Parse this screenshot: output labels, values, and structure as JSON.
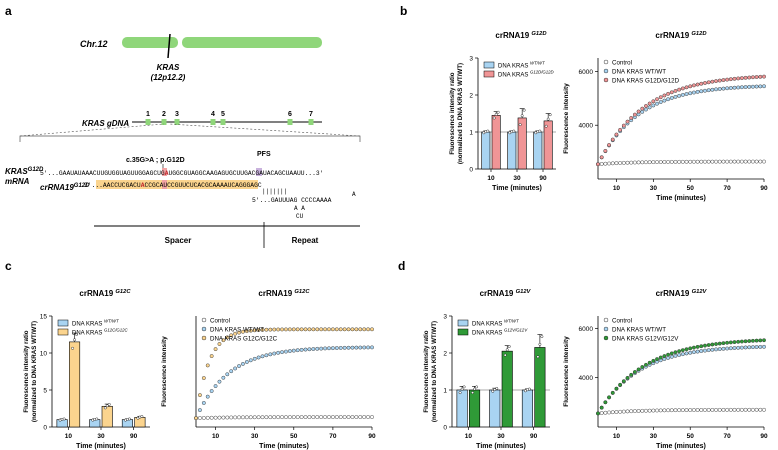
{
  "panels": {
    "a": {
      "label": "a",
      "chromosome": "Chr.12",
      "gene": "KRAS",
      "locus": "(12p12.2)",
      "gdna_label": "KRAS gDNA",
      "exons": [
        "1",
        "2",
        "3",
        "4",
        "5",
        "6",
        "7"
      ],
      "mrna_label_main": "KRAS",
      "mrna_label_sup": "G12D",
      "mrna_label_line2": "mRNA",
      "mutation": "c.35G>A ; p.G12D",
      "pfs": "PFS",
      "mrna_seq_prefix": "5'...GAAUAUAAACUUGUGGUAGUUGGAGCUG",
      "mrna_seq_mut": "A",
      "mrna_seq_mid": "UGGCGUAGGCAAGAGUG",
      "mrna_seq_pfs": "C",
      "mrna_seq_suffix": "UUGACGAUACAGCUAAUU...3'",
      "crrna_label_main": "crRNA19",
      "crrna_label_sup": "G12D",
      "crrna_seq_prefix": "3'...",
      "crrna_seq_a": "AACCUCGACU",
      "crrna_seq_mut": "A",
      "crrna_seq_b": "CCGCAUCCGUUCUCACG",
      "crrna_seq_tail": "CAAAAUCAGGGAGC",
      "crrna_line2": "5'...GAUUUAG  CCCCAAAA",
      "crrna_pairs": "|||||||",
      "loop_a": "A",
      "loop_aa": "A A",
      "loop_cu": "CU",
      "spacer": "Spacer",
      "repeat": "Repeat"
    },
    "b": {
      "label": "b",
      "bar_title_main": "crRNA19",
      "bar_title_sup": "G12D",
      "line_title_main": "crRNA19",
      "line_title_sup": "G12D",
      "ylabel1": "Fluorescence intensity ratio",
      "ylabel2": "(normalized to DNA KRAS WT/WT)",
      "xlabel": "Time (minutes)",
      "legend_wt_main": "DNA KRAS",
      "legend_wt_sup": "WT/WT",
      "legend_mut_main": "DNA KRAS",
      "legend_mut_sup": "G12D/G12D",
      "line_legend": [
        "Control",
        "DNA KRAS WT/WT",
        "DNA KRAS G12D/G12D"
      ],
      "line_ylabel": "Fluorescence intensity",
      "line_xlabel": "Time (minutes)",
      "y_ticks": [
        "0",
        "1",
        "2",
        "3"
      ],
      "x_cats": [
        "10",
        "30",
        "90"
      ],
      "line_y_ticks": [
        "4000",
        "6000"
      ],
      "line_x_ticks": [
        "10",
        "30",
        "50",
        "70",
        "90"
      ]
    },
    "c": {
      "label": "c",
      "bar_title_main": "crRNA19",
      "bar_title_sup": "G12C",
      "line_title_main": "crRNA19",
      "line_title_sup": "G12C",
      "ylabel1": "Fluorescence intensity ratio",
      "ylabel2": "(normalized to DNA KRAS WT/WT)",
      "xlabel": "Time (minutes)",
      "legend_wt_main": "DNA KRAS",
      "legend_wt_sup": "WT/WT",
      "legend_mut_main": "DNA KRAS",
      "legend_mut_sup": "G12C/G12C",
      "line_legend": [
        "Control",
        "DNA KRAS WT/WT",
        "DNA KRAS G12C/G12C"
      ],
      "line_ylabel": "Fluorescence intensity",
      "line_xlabel": "Time (minutes)",
      "y_ticks": [
        "0",
        "5",
        "10",
        "15"
      ],
      "x_cats": [
        "10",
        "30",
        "90"
      ],
      "line_x_ticks": [
        "10",
        "30",
        "50",
        "70",
        "90"
      ]
    },
    "d": {
      "label": "d",
      "bar_title_main": "crRNA19",
      "bar_title_sup": "G12V",
      "line_title_main": "crRNA19",
      "line_title_sup": "G12V",
      "ylabel1": "Fluorescence intensity ratio",
      "ylabel2": "(normalized to DNA KRAS WT/WT)",
      "xlabel": "Time (minutes)",
      "legend_wt_main": "DNA KRAS",
      "legend_wt_sup": "WT/WT",
      "legend_mut_main": "DNA KRAS",
      "legend_mut_sup": "G12V/G12V",
      "line_legend": [
        "Control",
        "DNA KRAS WT/WT",
        "DNA KRAS G12V/G12V"
      ],
      "line_ylabel": "Fluorescence intensity",
      "line_xlabel": "Time (minutes)",
      "y_ticks": [
        "0",
        "1",
        "2",
        "3"
      ],
      "x_cats": [
        "10",
        "30",
        "90"
      ],
      "line_y_ticks": [
        "4000",
        "6000"
      ],
      "line_x_ticks": [
        "10",
        "30",
        "50",
        "70",
        "90"
      ]
    }
  },
  "colors": {
    "wt": "#a9d4f2",
    "g12d": "#f09596",
    "g12c": "#fbd48e",
    "g12v": "#2f9a37",
    "chrom": "#8fd67a",
    "exon": "#8fd67a",
    "highlight": "#fbd48e",
    "mut_box": "#f2a3a4",
    "pfs_box": "#c9b2dd"
  },
  "chart_data": [
    {
      "type": "bar",
      "title": "crRNA19 G12D",
      "categories": [
        "10",
        "30",
        "90"
      ],
      "xlabel": "Time (minutes)",
      "ylabel": "Fluorescence intensity ratio (normalized to DNA KRAS WT/WT)",
      "ylim": [
        0,
        3
      ],
      "series": [
        {
          "name": "DNA KRAS WT/WT",
          "values": [
            1.0,
            1.0,
            1.0
          ],
          "err": [
            0.03,
            0.03,
            0.03
          ]
        },
        {
          "name": "DNA KRAS G12D/G12D",
          "values": [
            1.45,
            1.38,
            1.3
          ],
          "err": [
            0.1,
            0.25,
            0.2
          ]
        }
      ]
    },
    {
      "type": "line",
      "title": "crRNA19 G12D",
      "xlabel": "Time (minutes)",
      "ylabel": "Fluorescence intensity",
      "xlim": [
        0,
        90
      ],
      "ylim": [
        2000,
        6500
      ],
      "series": [
        {
          "name": "Control",
          "start": 2550,
          "end": 2650,
          "k": 0.05
        },
        {
          "name": "DNA KRAS WT/WT",
          "start": 2550,
          "end": 5500,
          "k": 0.045
        },
        {
          "name": "DNA KRAS G12D/G12D",
          "start": 2550,
          "end": 5900,
          "k": 0.04
        }
      ]
    },
    {
      "type": "bar",
      "title": "crRNA19 G12C",
      "categories": [
        "10",
        "30",
        "90"
      ],
      "xlabel": "Time (minutes)",
      "ylabel": "Fluorescence intensity ratio (normalized to DNA KRAS WT/WT)",
      "ylim": [
        0,
        15
      ],
      "series": [
        {
          "name": "DNA KRAS WT/WT",
          "values": [
            1.0,
            1.0,
            1.0
          ],
          "err": [
            0.1,
            0.1,
            0.1
          ]
        },
        {
          "name": "DNA KRAS G12C/G12C",
          "values": [
            11.5,
            2.8,
            1.3
          ],
          "err": [
            1.2,
            0.3,
            0.15
          ]
        }
      ]
    },
    {
      "type": "line",
      "title": "crRNA19 G12C",
      "xlabel": "Time (minutes)",
      "ylabel": "Fluorescence intensity",
      "xlim": [
        0,
        90
      ],
      "ylim": [
        0,
        1
      ],
      "series": [
        {
          "name": "Control",
          "start": 0.08,
          "end": 0.09,
          "k": 0.05
        },
        {
          "name": "DNA KRAS WT/WT",
          "start": 0.08,
          "end": 0.72,
          "k": 0.06
        },
        {
          "name": "DNA KRAS G12C/G12C",
          "start": 0.08,
          "end": 0.88,
          "k": 0.15
        }
      ]
    },
    {
      "type": "bar",
      "title": "crRNA19 G12V",
      "categories": [
        "10",
        "30",
        "90"
      ],
      "xlabel": "Time (minutes)",
      "ylabel": "Fluorescence intensity ratio (normalized to DNA KRAS WT/WT)",
      "ylim": [
        0,
        3
      ],
      "series": [
        {
          "name": "DNA KRAS WT/WT",
          "values": [
            1.0,
            1.0,
            1.0
          ],
          "err": [
            0.1,
            0.05,
            0.03
          ]
        },
        {
          "name": "DNA KRAS G12V/G12V",
          "values": [
            1.0,
            2.05,
            2.15
          ],
          "err": [
            0.1,
            0.15,
            0.35
          ]
        }
      ]
    },
    {
      "type": "line",
      "title": "crRNA19 G12V",
      "xlabel": "Time (minutes)",
      "ylabel": "Fluorescence intensity",
      "xlim": [
        0,
        90
      ],
      "ylim": [
        2000,
        6500
      ],
      "series": [
        {
          "name": "Control",
          "start": 2550,
          "end": 2700,
          "k": 0.05
        },
        {
          "name": "DNA KRAS WT/WT",
          "start": 2550,
          "end": 5300,
          "k": 0.045
        },
        {
          "name": "DNA KRAS G12V/G12V",
          "start": 2550,
          "end": 5600,
          "k": 0.04
        }
      ]
    }
  ]
}
